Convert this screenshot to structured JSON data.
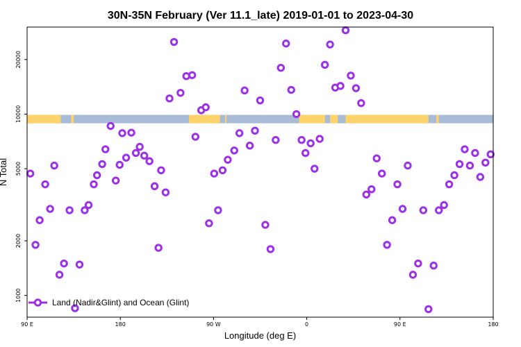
{
  "chart_data": {
    "type": "scatter",
    "title": "30N-35N February (Ver 11.1_late)   2019-01-01 to 2023-04-30",
    "xlabel": "Longitude (deg E)",
    "ylabel": "N Total",
    "xlim": [
      90,
      450
    ],
    "ylim_log10": [
      2.88,
      4.48
    ],
    "y_scale": "log",
    "x_ticks": [
      {
        "value": 90,
        "label": "90 E"
      },
      {
        "value": 162,
        "label": "180"
      },
      {
        "value": 234,
        "label": "90 W"
      },
      {
        "value": 306,
        "label": "0"
      },
      {
        "value": 378,
        "label": "90 E"
      },
      {
        "value": 450,
        "label": "180"
      }
    ],
    "y_ticks": [
      {
        "value": 1000,
        "label": "1000"
      },
      {
        "value": 2000,
        "label": "2000"
      },
      {
        "value": 5000,
        "label": "5000"
      },
      {
        "value": 10000,
        "label": "10000"
      },
      {
        "value": 20000,
        "label": "20000"
      }
    ],
    "legend": {
      "label": "Land (Nadir&Glint) and Ocean (Glint)",
      "position": "bottom-left"
    },
    "colors": {
      "points": "#9b30e8",
      "land": "#ffd36b",
      "ocean": "#a8bcd8",
      "frame": "#000000"
    },
    "map_band": {
      "y_range": [
        8900,
        9900
      ],
      "land_segments": [
        [
          90,
          116
        ],
        [
          124,
          126
        ],
        [
          215,
          239
        ],
        [
          243,
          244
        ],
        [
          300,
          320
        ],
        [
          324,
          330
        ],
        [
          336,
          400
        ],
        [
          406,
          408
        ]
      ]
    },
    "series": [
      {
        "name": "Land (Nadir&Glint) and Ocean (Glint)",
        "x": [
          92.5,
          96.5,
          99.7,
          104,
          107.8,
          111,
          115,
          118.5,
          122.8,
          127,
          130.5,
          134.5,
          137.5,
          141.5,
          144,
          148,
          150.5,
          154.5,
          158.5,
          161.5,
          163.5,
          166.5,
          170.5,
          174,
          177,
          180.5,
          184.5,
          188.5,
          191.5,
          193.5,
          197,
          200,
          203.5,
          208.5,
          213,
          217.5,
          220,
          224.5,
          228,
          230.5,
          234.5,
          237.5,
          241,
          245,
          250,
          254,
          258,
          262,
          266,
          270,
          274,
          278,
          282,
          286,
          290,
          294,
          298,
          302,
          305,
          309,
          312,
          316,
          320,
          324,
          328,
          332,
          336,
          340,
          344,
          348,
          352,
          356,
          360,
          364,
          368,
          372,
          376,
          380,
          384,
          388,
          392,
          396,
          400,
          404,
          408,
          412,
          416,
          420,
          424,
          428,
          432,
          436,
          440,
          444,
          448
        ],
        "y": [
          4700,
          1900,
          2600,
          4100,
          3000,
          5200,
          1300,
          1500,
          2950,
          850,
          1480,
          2950,
          3150,
          4100,
          4600,
          5300,
          6400,
          8600,
          4300,
          5250,
          7850,
          5750,
          7900,
          6100,
          6600,
          5900,
          5500,
          4000,
          1830,
          4900,
          3700,
          12200,
          25000,
          13100,
          16200,
          16400,
          7500,
          10500,
          10900,
          2500,
          4700,
          2950,
          4900,
          5600,
          6300,
          7850,
          13500,
          6700,
          8100,
          11900,
          2450,
          1800,
          7200,
          18000,
          24500,
          13600,
          10000,
          7200,
          6100,
          6900,
          5000,
          7300,
          18700,
          24200,
          14000,
          14300,
          29000,
          16300,
          13900,
          11500,
          3600,
          3850,
          5700,
          4700,
          1900,
          2600,
          4100,
          3000,
          5200,
          1300,
          1500,
          2950,
          840,
          1460,
          2950,
          3150,
          4100,
          4600,
          5300,
          6400,
          5200,
          6100,
          4500,
          5400,
          6000
        ]
      }
    ]
  }
}
